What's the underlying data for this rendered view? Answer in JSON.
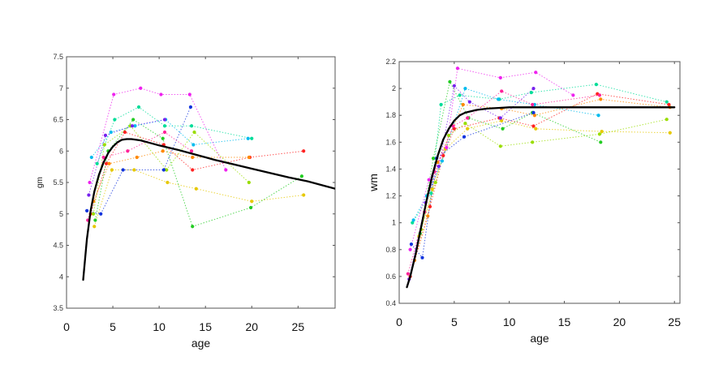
{
  "chart_data": [
    {
      "type": "scatter",
      "title": "",
      "xlabel": "age",
      "ylabel": "gm",
      "xlim": [
        0,
        29
      ],
      "ylim": [
        3.5,
        7.5
      ],
      "xticks": [
        "0",
        "5",
        "10",
        "15",
        "20",
        "25"
      ],
      "yticks": [
        "3.5",
        "4",
        "4.5",
        "5",
        "5.5",
        "6",
        "6.5",
        "7",
        "7.5"
      ],
      "fit_curve": {
        "x": [
          1.8,
          2.2,
          2.6,
          3,
          3.5,
          4,
          4.5,
          5,
          5.5,
          6,
          6.5,
          7,
          8,
          9,
          10,
          12,
          14,
          16,
          18,
          20,
          22,
          24,
          26,
          28,
          29
        ],
        "y": [
          3.95,
          4.6,
          5.05,
          5.35,
          5.62,
          5.82,
          5.97,
          6.07,
          6.14,
          6.18,
          6.19,
          6.19,
          6.17,
          6.13,
          6.09,
          6.02,
          5.94,
          5.86,
          5.79,
          5.72,
          5.65,
          5.58,
          5.52,
          5.44,
          5.4
        ]
      },
      "series": [
        {
          "color": "#ff2222",
          "x": [
            2.6,
            4.3,
            6.3,
            10.5,
            13.6,
            19.8,
            25.6
          ],
          "y": [
            5.0,
            5.8,
            6.3,
            6.1,
            5.7,
            5.9,
            6.0
          ]
        },
        {
          "color": "#ff8800",
          "x": [
            2.9,
            4.6,
            7.6,
            10.4,
            13.6,
            19.7
          ],
          "y": [
            5.2,
            5.8,
            5.9,
            6.0,
            5.9,
            5.9
          ]
        },
        {
          "color": "#e6c800",
          "x": [
            3.0,
            4.9,
            7.3,
            10.9,
            14.0,
            20.0,
            25.6
          ],
          "y": [
            4.8,
            5.7,
            5.7,
            5.5,
            5.4,
            5.2,
            5.3
          ]
        },
        {
          "color": "#99dd00",
          "x": [
            2.9,
            4.1,
            6.9,
            10.8,
            13.8,
            19.7
          ],
          "y": [
            5.0,
            6.1,
            6.4,
            5.7,
            6.3,
            5.5
          ]
        },
        {
          "color": "#22cc22",
          "x": [
            3.1,
            4.5,
            7.2,
            10.4,
            13.6,
            19.9,
            25.4
          ],
          "y": [
            4.9,
            6.0,
            6.5,
            6.2,
            4.8,
            5.1,
            5.6
          ]
        },
        {
          "color": "#00dd99",
          "x": [
            3.3,
            5.2,
            7.8,
            10.6,
            13.5,
            20.0
          ],
          "y": [
            5.8,
            6.5,
            6.7,
            6.4,
            6.4,
            6.2
          ]
        },
        {
          "color": "#00bbee",
          "x": [
            2.7,
            4.8,
            7.4,
            10.7,
            13.7,
            19.6
          ],
          "y": [
            5.9,
            6.3,
            6.4,
            6.5,
            6.1,
            6.2
          ]
        },
        {
          "color": "#1133dd",
          "x": [
            2.2,
            3.7,
            6.1,
            10.5,
            13.4
          ],
          "y": [
            5.05,
            5.0,
            5.7,
            5.7,
            6.7
          ]
        },
        {
          "color": "#7722ee",
          "x": [
            2.4,
            4.2,
            7.1,
            10.6
          ],
          "y": [
            5.3,
            6.25,
            6.4,
            6.5
          ]
        },
        {
          "color": "#ee22ee",
          "x": [
            2.5,
            5.1,
            8.0,
            10.2,
            13.3,
            17.2
          ],
          "y": [
            5.5,
            6.9,
            7.0,
            6.9,
            6.9,
            5.7
          ]
        },
        {
          "color": "#ff2299",
          "x": [
            2.3,
            4.0,
            6.6,
            10.6,
            13.5
          ],
          "y": [
            4.9,
            5.9,
            6.0,
            6.3,
            6.0
          ]
        }
      ]
    },
    {
      "type": "scatter",
      "title": "",
      "xlabel": "age",
      "ylabel": "wm",
      "xlim": [
        0,
        25.5
      ],
      "ylim": [
        0.4,
        2.2
      ],
      "xticks": [
        "0",
        "5",
        "10",
        "15",
        "20",
        "25"
      ],
      "yticks": [
        "0.4",
        "0.6",
        "0.8",
        "1",
        "1.2",
        "1.4",
        "1.6",
        "1.8",
        "2",
        "2.2"
      ],
      "fit_curve": {
        "x": [
          0.7,
          1,
          1.5,
          2,
          2.5,
          3,
          3.5,
          4,
          4.5,
          5,
          5.5,
          6,
          7,
          8,
          9,
          10,
          12,
          15,
          20,
          25
        ],
        "y": [
          0.52,
          0.6,
          0.77,
          0.97,
          1.17,
          1.35,
          1.5,
          1.62,
          1.7,
          1.76,
          1.8,
          1.82,
          1.84,
          1.85,
          1.855,
          1.86,
          1.86,
          1.86,
          1.86,
          1.86
        ]
      },
      "series": [
        {
          "color": "#ff2222",
          "x": [
            1.0,
            2.8,
            4.0,
            5.0,
            9.1,
            12.2,
            18.0,
            24.5
          ],
          "y": [
            0.6,
            1.12,
            1.5,
            1.7,
            1.78,
            1.72,
            1.96,
            1.88
          ]
        },
        {
          "color": "#ff8800",
          "x": [
            1.4,
            2.6,
            3.5,
            5.8,
            9.3,
            12.3,
            18.3,
            24.6
          ],
          "y": [
            0.72,
            1.05,
            1.45,
            1.88,
            1.85,
            1.8,
            1.92,
            1.86
          ]
        },
        {
          "color": "#e6c800",
          "x": [
            1.8,
            3.0,
            4.2,
            6.2,
            9.3,
            12.4,
            18.4,
            24.6
          ],
          "y": [
            0.9,
            1.25,
            1.55,
            1.7,
            1.76,
            1.7,
            1.68,
            1.67
          ]
        },
        {
          "color": "#99dd00",
          "x": [
            2.0,
            3.3,
            4.5,
            6.0,
            9.2,
            12.1,
            18.2,
            24.3
          ],
          "y": [
            0.95,
            1.3,
            1.65,
            1.74,
            1.57,
            1.6,
            1.66,
            1.77
          ]
        },
        {
          "color": "#22cc22",
          "x": [
            1.9,
            3.1,
            4.6,
            6.3,
            9.4,
            12.1,
            18.3
          ],
          "y": [
            0.92,
            1.48,
            2.05,
            1.78,
            1.7,
            1.82,
            1.6
          ]
        },
        {
          "color": "#00dd99",
          "x": [
            1.2,
            2.9,
            3.8,
            5.5,
            9.1,
            12.0,
            17.9,
            24.3
          ],
          "y": [
            1.0,
            1.22,
            1.88,
            1.95,
            1.92,
            1.97,
            2.03,
            1.9
          ]
        },
        {
          "color": "#00bbee",
          "x": [
            1.3,
            2.5,
            3.9,
            6.0,
            9.0,
            12.3,
            18.1
          ],
          "y": [
            1.02,
            1.2,
            1.46,
            2.0,
            1.92,
            1.88,
            1.8
          ]
        },
        {
          "color": "#1133dd",
          "x": [
            1.1,
            2.1,
            3.4,
            5.9,
            12.2
          ],
          "y": [
            0.84,
            0.74,
            1.48,
            1.64,
            1.82
          ]
        },
        {
          "color": "#7722ee",
          "x": [
            0.9,
            2.4,
            3.6,
            5.0,
            6.4,
            9.2,
            12.2
          ],
          "y": [
            0.58,
            1.15,
            1.42,
            2.02,
            1.9,
            1.78,
            2.0
          ]
        },
        {
          "color": "#ee22ee",
          "x": [
            1.0,
            2.7,
            4.3,
            5.3,
            9.2,
            12.4,
            15.8
          ],
          "y": [
            0.8,
            1.32,
            1.56,
            2.15,
            2.08,
            2.12,
            1.95
          ]
        },
        {
          "color": "#ff2299",
          "x": [
            0.8,
            2.3,
            3.2,
            4.9,
            6.2,
            9.3,
            12.1,
            18.2
          ],
          "y": [
            0.62,
            1.08,
            1.38,
            1.72,
            1.78,
            1.98,
            1.88,
            1.95
          ]
        }
      ]
    }
  ]
}
